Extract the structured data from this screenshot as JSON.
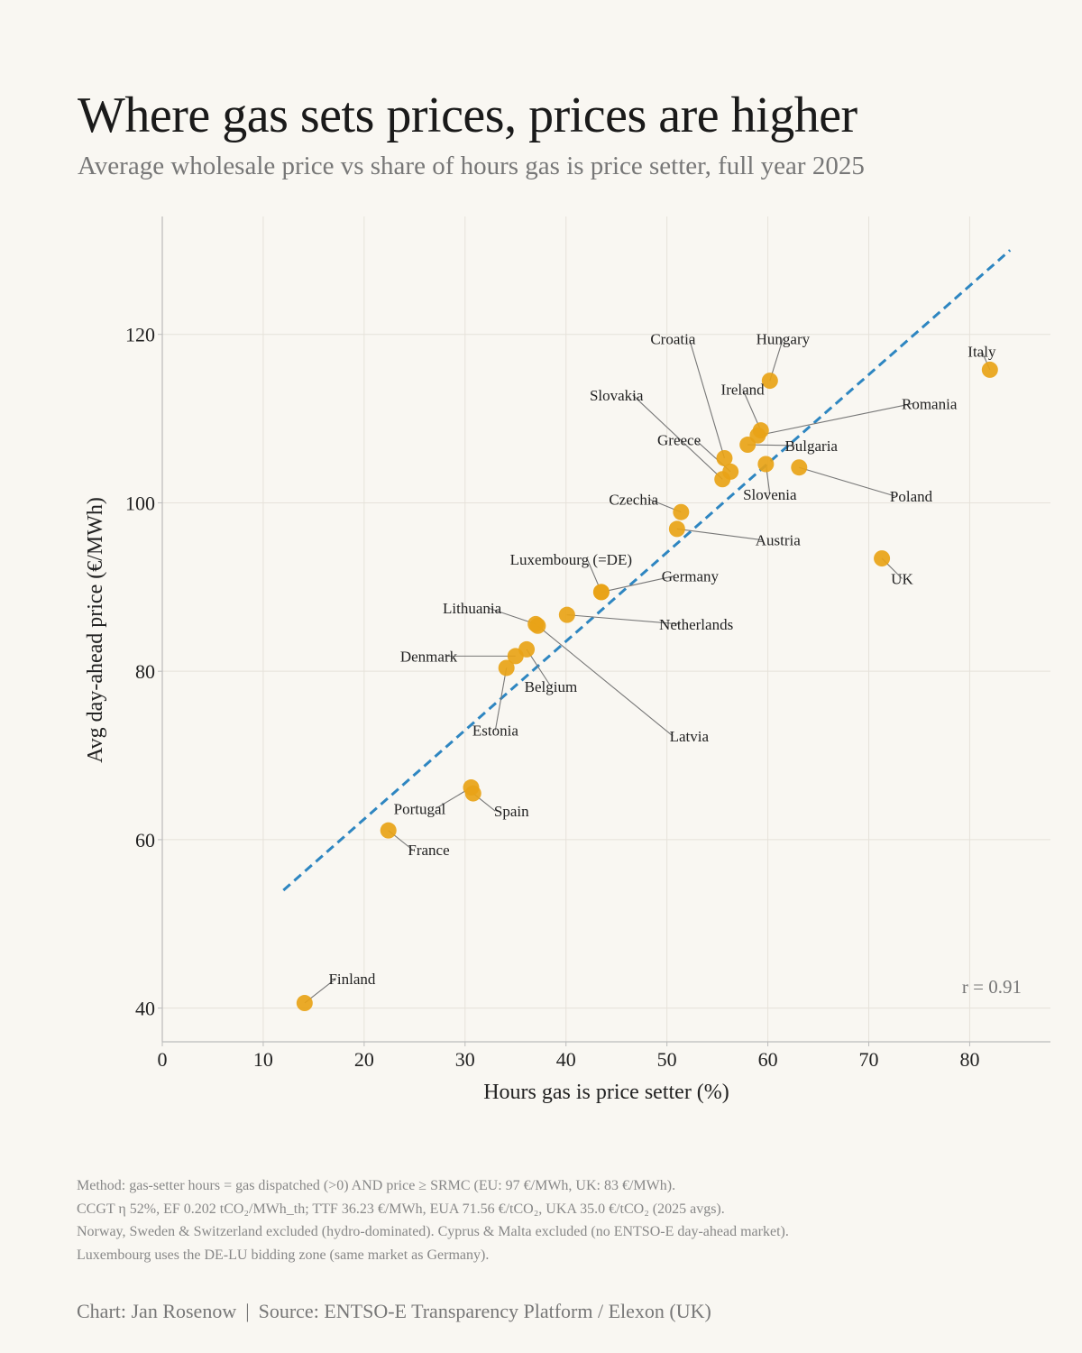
{
  "header": {
    "title": "Where gas sets prices, prices are higher",
    "subtitle": "Average wholesale price vs share of hours gas is price setter, full year 2025"
  },
  "colors": {
    "background": "#f9f7f2",
    "point": "#e8a317",
    "trend": "#2e86c1",
    "grid": "#e6e2da",
    "axis": "#bbbbbb",
    "leader": "#777777"
  },
  "chart_data": {
    "type": "scatter",
    "xlabel": "Hours gas is price setter (%)",
    "ylabel": "Avg day-ahead price (€/MWh)",
    "xlim": [
      0,
      88
    ],
    "ylim": [
      36,
      134
    ],
    "xticks": [
      0,
      10,
      20,
      30,
      40,
      50,
      60,
      70,
      80
    ],
    "yticks": [
      40,
      60,
      80,
      100,
      120
    ],
    "grid": true,
    "annotation": "r = 0.91",
    "trendline": {
      "x": [
        12,
        84
      ],
      "y": [
        54,
        130
      ],
      "style": "dashed"
    },
    "points": [
      {
        "label": "Italy",
        "x": 82.0,
        "y": 115.8,
        "lx": 81.2,
        "ly": 118.0
      },
      {
        "label": "Hungary",
        "x": 60.2,
        "y": 114.5,
        "lx": 61.5,
        "ly": 119.5
      },
      {
        "label": "Croatia",
        "x": 55.7,
        "y": 105.3,
        "lx": 50.6,
        "ly": 119.5
      },
      {
        "label": "Ireland",
        "x": 59.3,
        "y": 108.6,
        "lx": 57.5,
        "ly": 113.5
      },
      {
        "label": "Romania",
        "x": 59.0,
        "y": 108.0,
        "lx": 76.0,
        "ly": 111.8
      },
      {
        "label": "Slovakia",
        "x": 55.5,
        "y": 102.8,
        "lx": 45.0,
        "ly": 112.8
      },
      {
        "label": "Greece",
        "x": 56.3,
        "y": 103.7,
        "lx": 51.2,
        "ly": 107.5
      },
      {
        "label": "Bulgaria",
        "x": 58.0,
        "y": 106.9,
        "lx": 64.3,
        "ly": 106.8
      },
      {
        "label": "Slovenia",
        "x": 59.8,
        "y": 104.6,
        "lx": 60.2,
        "ly": 101.0
      },
      {
        "label": "Poland",
        "x": 63.1,
        "y": 104.2,
        "lx": 74.2,
        "ly": 100.8
      },
      {
        "label": "Czechia",
        "x": 51.4,
        "y": 98.9,
        "lx": 46.7,
        "ly": 100.4
      },
      {
        "label": "Austria",
        "x": 51.0,
        "y": 96.9,
        "lx": 61.0,
        "ly": 95.6
      },
      {
        "label": "Luxembourg (=DE)",
        "x": 43.5,
        "y": 89.4,
        "lx": 40.5,
        "ly": 93.3
      },
      {
        "label": "Germany",
        "x": 43.5,
        "y": 89.4,
        "lx": 52.3,
        "ly": 91.3
      },
      {
        "label": "UK",
        "x": 71.3,
        "y": 93.4,
        "lx": 73.3,
        "ly": 91.0
      },
      {
        "label": "Netherlands",
        "x": 40.1,
        "y": 86.7,
        "lx": 52.9,
        "ly": 85.6
      },
      {
        "label": "Lithuania",
        "x": 37.0,
        "y": 85.6,
        "lx": 30.7,
        "ly": 87.5
      },
      {
        "label": "Latvia",
        "x": 37.2,
        "y": 85.4,
        "lx": 52.2,
        "ly": 72.3
      },
      {
        "label": "Denmark",
        "x": 35.0,
        "y": 81.8,
        "lx": 26.4,
        "ly": 81.8
      },
      {
        "label": "Belgium",
        "x": 36.1,
        "y": 82.6,
        "lx": 38.5,
        "ly": 78.2
      },
      {
        "label": "Estonia",
        "x": 34.1,
        "y": 80.4,
        "lx": 33.0,
        "ly": 73.0
      },
      {
        "label": "Portugal",
        "x": 30.6,
        "y": 66.2,
        "lx": 25.5,
        "ly": 63.7
      },
      {
        "label": "Spain",
        "x": 30.8,
        "y": 65.5,
        "lx": 34.6,
        "ly": 63.4
      },
      {
        "label": "France",
        "x": 22.4,
        "y": 61.1,
        "lx": 26.4,
        "ly": 58.8
      },
      {
        "label": "Finland",
        "x": 14.1,
        "y": 40.6,
        "lx": 18.8,
        "ly": 43.5
      }
    ]
  },
  "footnotes": [
    "Method: gas-setter hours = gas dispatched (>0) AND price ≥ SRMC (EU: 97 €/MWh, UK: 83 €/MWh).",
    "CCGT η 52%, EF 0.202 tCO₂/MWh_th; TTF 36.23 €/MWh, EUA 71.56 €/tCO₂, UKA 35.0 €/tCO₂ (2025 avgs).",
    "Norway, Sweden & Switzerland excluded (hydro-dominated). Cyprus & Malta excluded (no ENTSO-E day-ahead market).",
    "Luxembourg uses the DE-LU bidding zone (same market as Germany)."
  ],
  "credit": {
    "chart": "Chart: Jan Rosenow",
    "separator": "|",
    "source": "Source: ENTSO-E Transparency Platform / Elexon (UK)"
  }
}
